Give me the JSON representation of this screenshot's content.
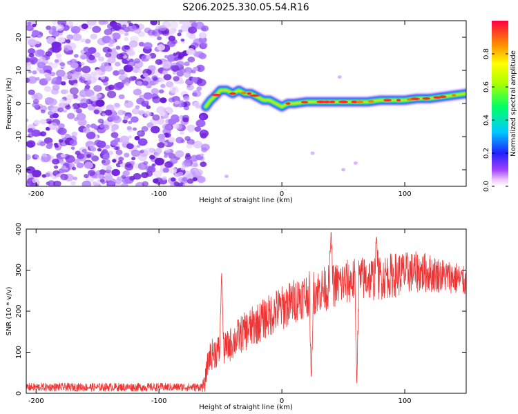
{
  "title": "S206.2025.330.05.54.R16",
  "colors": {
    "snr_line": "#ee3333",
    "axis": "#000000",
    "background": "#ffffff",
    "noise_purple": "#7a2be0"
  },
  "chart_data": [
    {
      "type": "heatmap",
      "name": "spectrogram",
      "title": "S206.2025.330.05.54.R16",
      "xlabel": "Height of straight line (km)",
      "ylabel": "Frequency (Hz)",
      "xlim": [
        -208,
        150
      ],
      "ylim": [
        -25,
        25
      ],
      "xticks": [
        -200,
        -100,
        0,
        100
      ],
      "yticks": [
        -20,
        -10,
        0,
        10,
        20
      ],
      "noise_region_x": [
        -208,
        -62
      ],
      "signal_start_x": -62,
      "ridge": {
        "x": [
          -62,
          -58,
          -55,
          -50,
          -45,
          -40,
          -35,
          -30,
          -25,
          -20,
          -15,
          -10,
          -5,
          0,
          5,
          10,
          20,
          30,
          40,
          50,
          60,
          70,
          80,
          90,
          100,
          110,
          120,
          130,
          140,
          150
        ],
        "freq": [
          -1,
          1,
          2,
          4,
          4,
          3,
          4,
          3,
          3,
          2,
          1,
          1,
          0,
          -1,
          0,
          0,
          0.5,
          0.5,
          0.5,
          0.5,
          0.5,
          0.5,
          1,
          1,
          1,
          1.5,
          1.5,
          2,
          2.5,
          3
        ]
      },
      "colorbar": {
        "label": "Normalized spectral amplitude",
        "range": [
          0.0,
          1.0
        ],
        "ticks": [
          "0.0",
          "0.2",
          "0.4",
          "0.6",
          "0.8"
        ],
        "colormap": "rainbow"
      }
    },
    {
      "type": "line",
      "name": "snr",
      "title": "",
      "xlabel": "Height of straight line (km)",
      "ylabel": "SNR (10 * v/v)",
      "xlim": [
        -208,
        150
      ],
      "ylim": [
        0,
        400
      ],
      "xticks": [
        -200,
        -100,
        0,
        100
      ],
      "yticks": [
        0,
        100,
        200,
        300,
        400
      ],
      "color": "#ee3333",
      "envelope": {
        "x": [
          -208,
          -180,
          -150,
          -120,
          -90,
          -66,
          -63,
          -61,
          -59,
          -55,
          -45,
          -35,
          -25,
          -15,
          -5,
          5,
          15,
          25,
          35,
          45,
          52,
          60,
          68,
          75,
          85,
          95,
          105,
          115,
          125,
          135,
          142,
          150
        ],
        "mean": [
          15,
          15,
          15,
          15,
          15,
          15,
          20,
          60,
          90,
          100,
          110,
          140,
          160,
          180,
          200,
          215,
          235,
          245,
          255,
          265,
          270,
          275,
          280,
          280,
          285,
          290,
          295,
          295,
          290,
          285,
          280,
          270
        ],
        "jitter": [
          10,
          10,
          10,
          10,
          10,
          10,
          20,
          30,
          35,
          40,
          40,
          45,
          50,
          50,
          55,
          55,
          55,
          55,
          55,
          55,
          55,
          55,
          55,
          55,
          55,
          55,
          50,
          50,
          45,
          40,
          40,
          35
        ]
      },
      "spikes": [
        {
          "x": -49,
          "y": 300
        },
        {
          "x": 24,
          "y": 25
        },
        {
          "x": 61,
          "y": 15
        },
        {
          "x": 40,
          "y": 398
        },
        {
          "x": 77,
          "y": 385
        }
      ]
    }
  ]
}
